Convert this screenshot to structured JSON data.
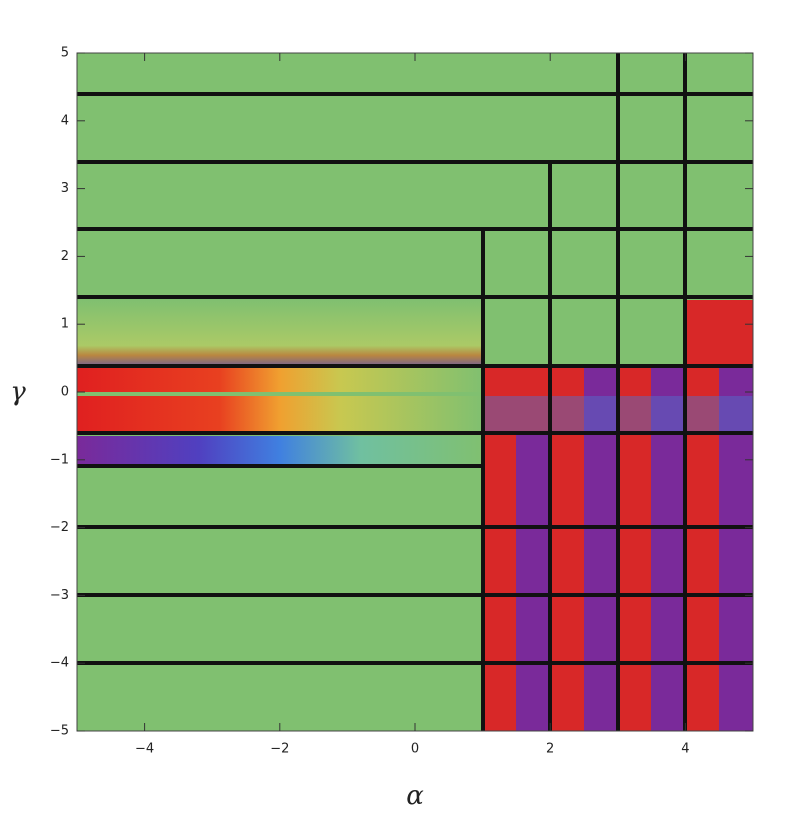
{
  "chart_data": {
    "type": "contour",
    "x_label": "α",
    "y_label": "γ",
    "xlim": [
      -5,
      5
    ],
    "ylim": [
      -5,
      5
    ],
    "xticks": [
      {
        "value": -4,
        "label": "−4"
      },
      {
        "value": -2,
        "label": "−2"
      },
      0,
      2,
      4
    ],
    "yticks": [
      {
        "value": -5,
        "label": "−5"
      },
      {
        "value": -4,
        "label": "−4"
      },
      {
        "value": -3,
        "label": "−3"
      },
      {
        "value": -2,
        "label": "−2"
      },
      {
        "value": -1,
        "label": "−1"
      },
      0,
      1,
      2,
      3,
      4,
      5
    ]
  }
}
